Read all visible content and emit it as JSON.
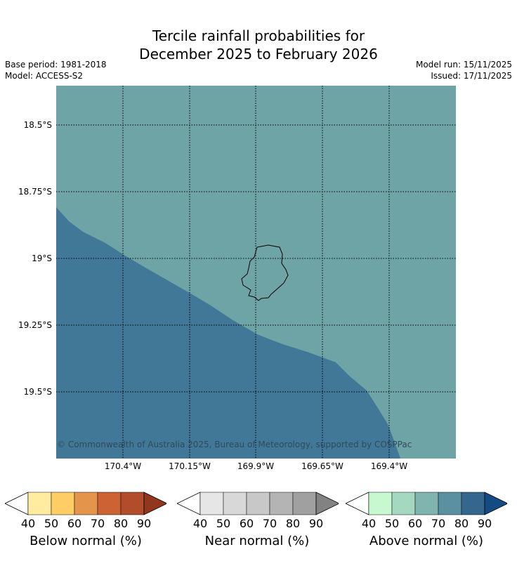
{
  "title_line1": "Tercile rainfall probabilities for",
  "title_line2": "December 2025 to February 2026",
  "base_period": "Base period: 1981-2018",
  "model": "Model: ACCESS-S2",
  "model_run": "Model run: 15/11/2025",
  "issued": "Issued: 17/11/2025",
  "lat_labels": [
    "18.5°S",
    "18.75°S",
    "19°S",
    "19.25°S",
    "19.5°S"
  ],
  "lon_labels": [
    "170.4°W",
    "170.15°W",
    "169.9°W",
    "169.65°W",
    "169.4°W"
  ],
  "credit": "© Commonwealth of Australia 2025, Bureau of Meteorology, supported by COSPPac",
  "colors": {
    "above_70": "#6fa4a6",
    "above_80": "#417897",
    "coast": "#000000"
  },
  "legends": [
    {
      "label": "Below normal (%)",
      "ticks": [
        "40",
        "50",
        "60",
        "70",
        "80",
        "90"
      ],
      "colors": [
        "#ffffff",
        "#ffeca0",
        "#fecd66",
        "#e3954b",
        "#cd6234",
        "#b34c2a",
        "#92361e"
      ]
    },
    {
      "label": "Near normal (%)",
      "ticks": [
        "40",
        "50",
        "60",
        "70",
        "80",
        "90"
      ],
      "colors": [
        "#ffffff",
        "#e6e6e6",
        "#d8d8d8",
        "#c8c8c8",
        "#b4b4b4",
        "#a0a0a0",
        "#828282"
      ]
    },
    {
      "label": "Above normal (%)",
      "ticks": [
        "40",
        "50",
        "60",
        "70",
        "80",
        "90"
      ],
      "colors": [
        "#ffffff",
        "#c8f8d0",
        "#a4d8c0",
        "#7fb5ae",
        "#5a90a0",
        "#35678e",
        "#144b82"
      ]
    }
  ]
}
